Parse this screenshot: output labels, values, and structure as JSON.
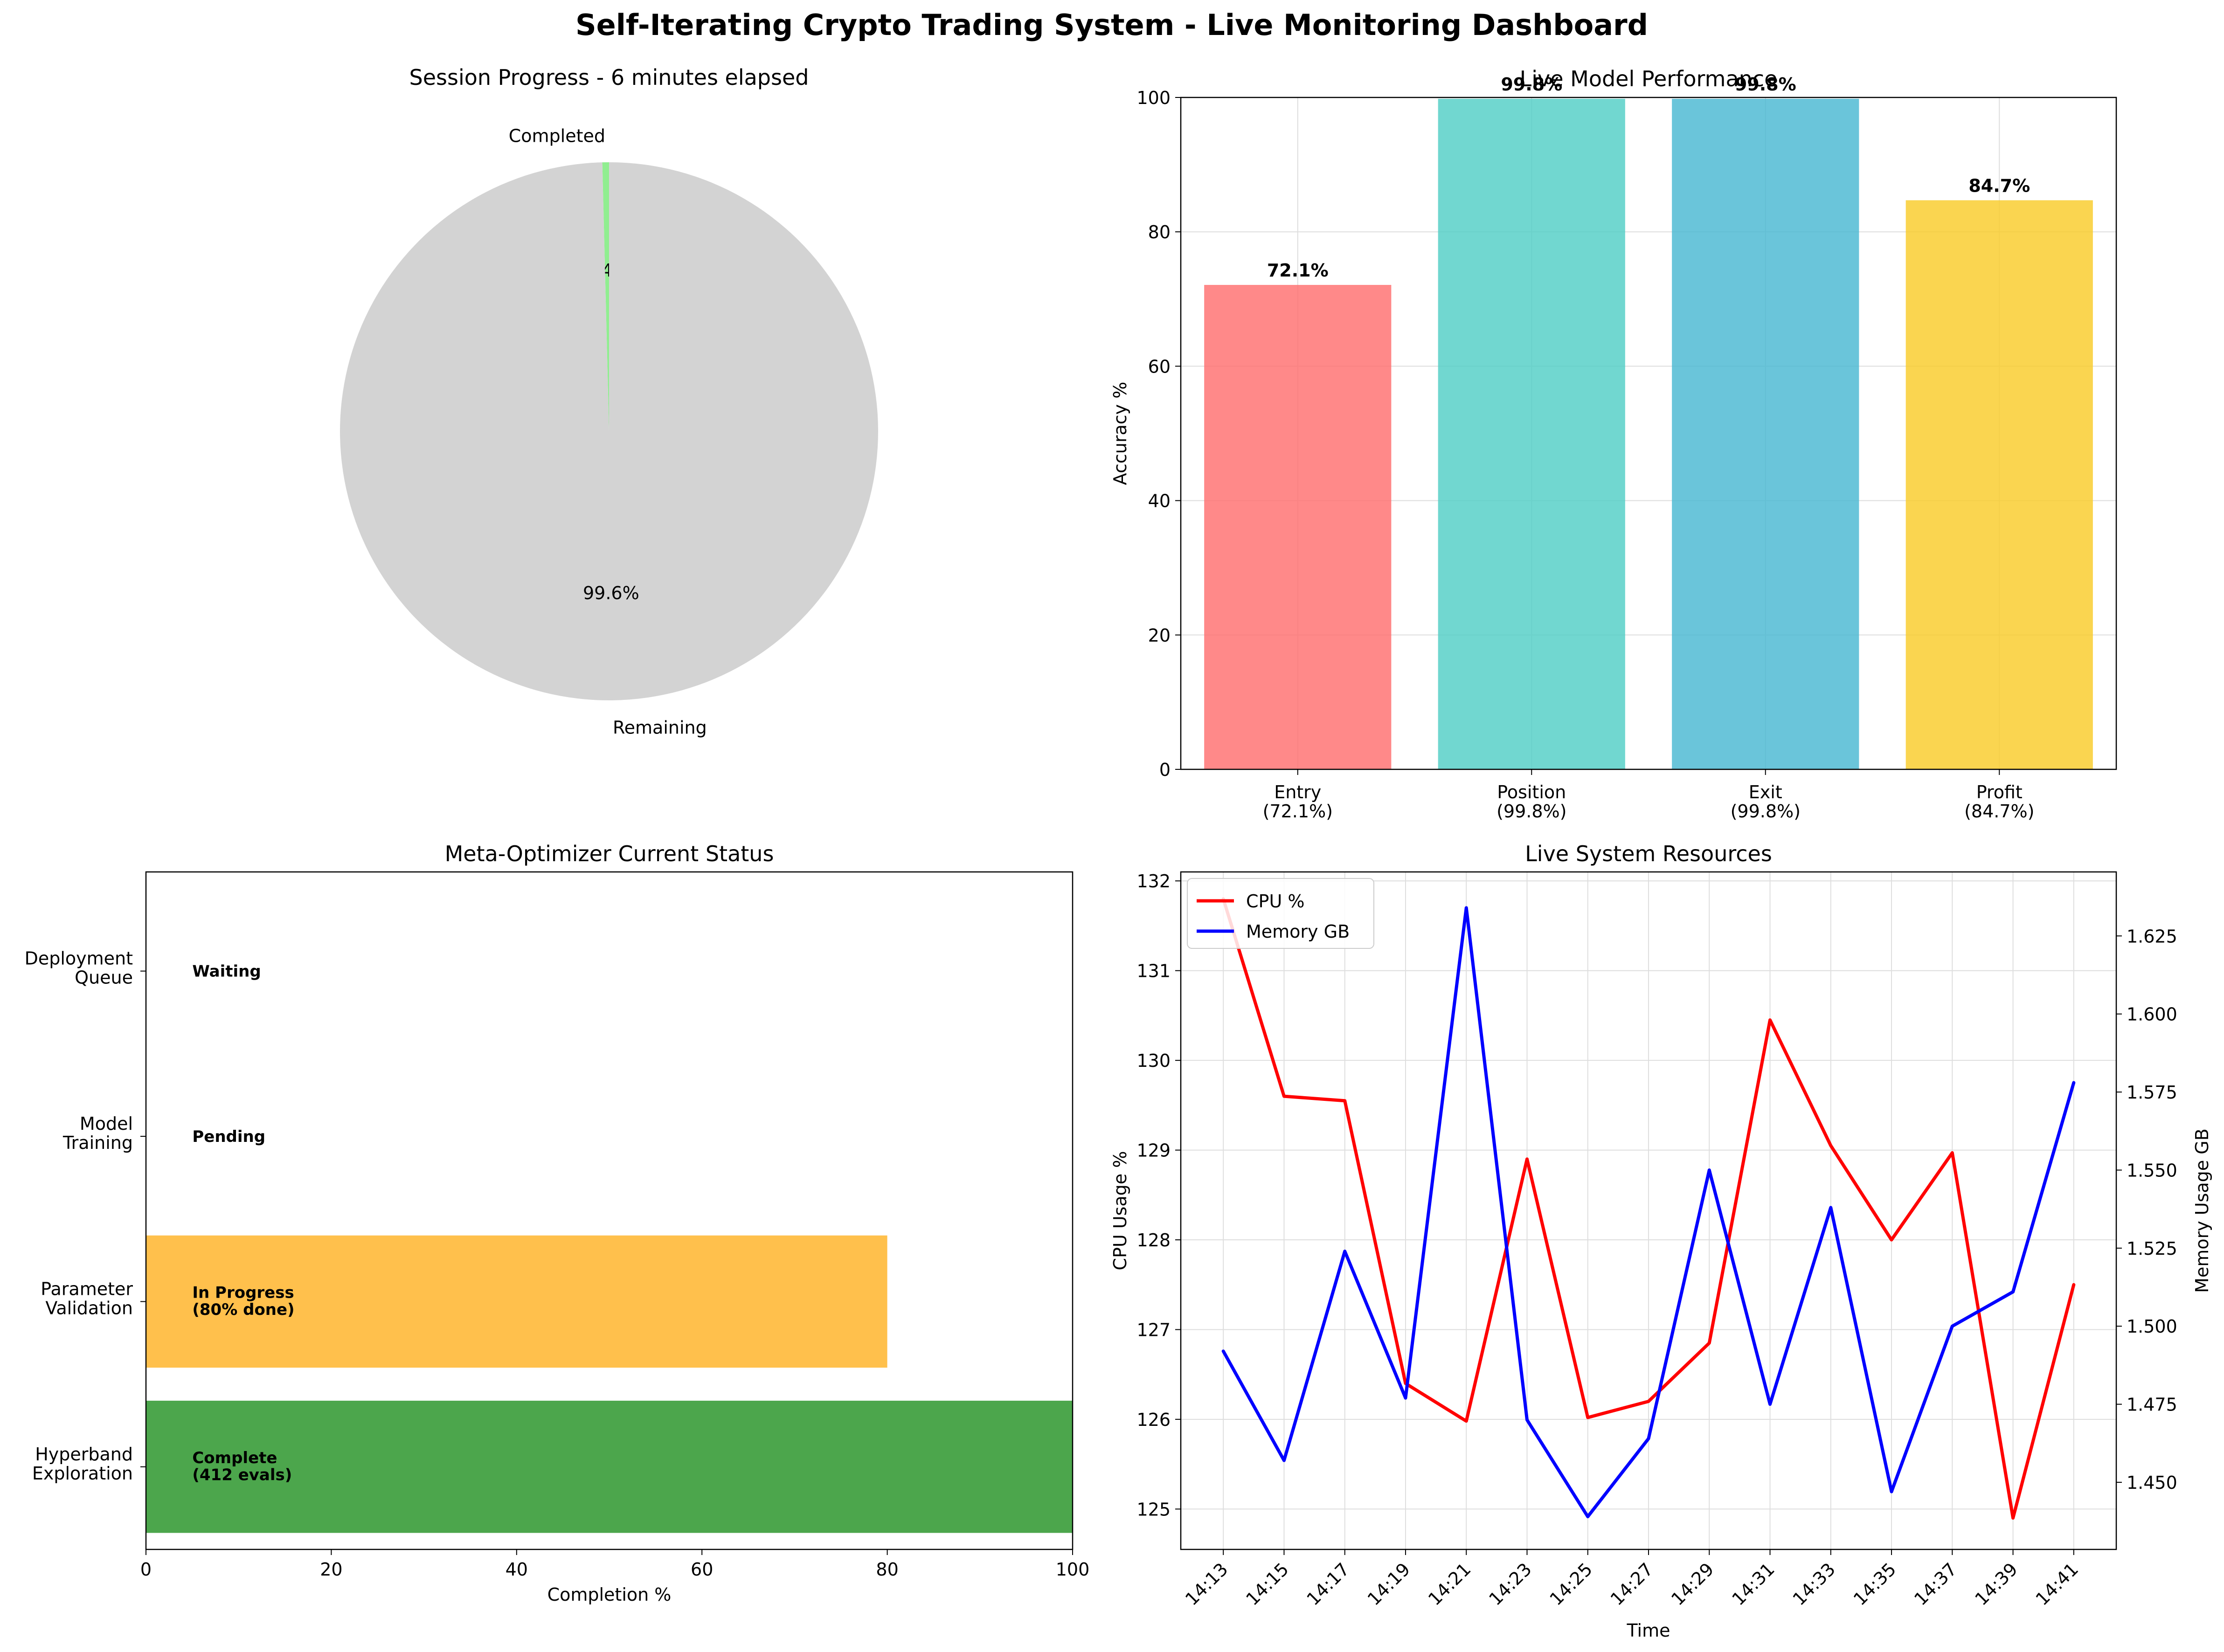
{
  "suptitle": "Self-Iterating Crypto Trading System - Live Monitoring Dashboard",
  "chart_data": [
    {
      "id": "session-progress",
      "type": "pie",
      "title": "Session Progress - 6 minutes elapsed",
      "slices": [
        {
          "label": "Completed",
          "value": 0.4,
          "pct_label": "0.4%",
          "color": "#90ee90"
        },
        {
          "label": "Remaining",
          "value": 99.6,
          "pct_label": "99.6%",
          "color": "#d3d3d3"
        }
      ]
    },
    {
      "id": "model-performance",
      "type": "bar",
      "title": "Live Model Performance",
      "ylabel": "Accuracy %",
      "ylim": [
        0,
        100
      ],
      "yticks": [
        "0",
        "20",
        "40",
        "60",
        "80",
        "100"
      ],
      "categories": [
        "Entry\n(72.1%)",
        "Position\n(99.8%)",
        "Exit\n(99.8%)",
        "Profit\n(84.7%)"
      ],
      "values": [
        72.1,
        99.8,
        99.8,
        84.7
      ],
      "value_labels": [
        "72.1%",
        "99.8%",
        "99.8%",
        "84.7%"
      ],
      "colors": [
        "#ff6b6b",
        "#4ecdc4",
        "#45b7d1",
        "#f9ca24"
      ],
      "grid": true
    },
    {
      "id": "meta-optimizer",
      "type": "bar",
      "orientation": "horizontal",
      "title": "Meta-Optimizer Current Status",
      "xlabel": "Completion %",
      "xlim": [
        0,
        100
      ],
      "xticks": [
        "0",
        "20",
        "40",
        "60",
        "80",
        "100"
      ],
      "categories": [
        "Hyperband\nExploration",
        "Parameter\nValidation",
        "Model\nTraining",
        "Deployment\nQueue"
      ],
      "values": [
        100,
        80,
        0,
        0
      ],
      "status_labels": [
        "Complete\n(412 evals)",
        "In Progress\n(80% done)",
        "Pending",
        "Waiting"
      ],
      "colors": [
        "#008000",
        "#ffa500",
        "#ff0000",
        "#808080"
      ]
    },
    {
      "id": "system-resources",
      "type": "line",
      "title": "Live System Resources",
      "xlabel": "Time",
      "ylabel": "CPU Usage %",
      "ylabel_right": "Memory Usage GB",
      "ylabel_color": "#ff0000",
      "ylabel_right_color": "#0000ff",
      "x": [
        "14:13",
        "14:15",
        "14:17",
        "14:19",
        "14:21",
        "14:23",
        "14:25",
        "14:27",
        "14:29",
        "14:31",
        "14:33",
        "14:35",
        "14:37",
        "14:39",
        "14:41"
      ],
      "ylim": [
        124.55,
        132.1
      ],
      "yticks": [
        "125",
        "126",
        "127",
        "128",
        "129",
        "130",
        "131",
        "132"
      ],
      "y2lim": [
        1.4285,
        1.6455
      ],
      "y2ticks": [
        "1.450",
        "1.475",
        "1.500",
        "1.525",
        "1.550",
        "1.575",
        "1.600",
        "1.625"
      ],
      "series": [
        {
          "name": "CPU %",
          "axis": "left",
          "color": "#ff0000",
          "values": [
            131.8,
            129.6,
            129.55,
            126.4,
            125.98,
            128.9,
            126.02,
            126.2,
            126.85,
            130.45,
            129.05,
            128.0,
            128.97,
            124.9,
            127.5
          ]
        },
        {
          "name": "Memory GB",
          "axis": "right",
          "color": "#0000ff",
          "values": [
            1.492,
            1.457,
            1.524,
            1.477,
            1.634,
            1.47,
            1.439,
            1.464,
            1.55,
            1.475,
            1.538,
            1.447,
            1.5,
            1.511,
            1.578
          ]
        }
      ],
      "legend": "top-left",
      "grid": true
    }
  ]
}
